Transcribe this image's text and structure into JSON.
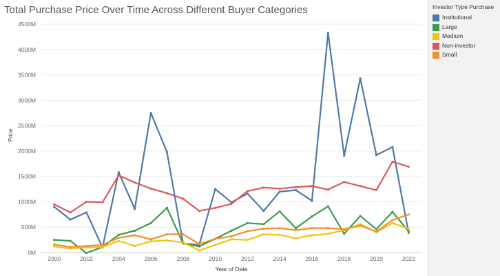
{
  "chart_data": {
    "type": "line",
    "title": "Total Purchase Price Over Time Across Different Buyer Categories",
    "xlabel": "Year of Date",
    "ylabel": "Price",
    "x": [
      2000,
      2001,
      2002,
      2003,
      2004,
      2005,
      2006,
      2007,
      2008,
      2009,
      2010,
      2011,
      2012,
      2013,
      2014,
      2015,
      2016,
      2017,
      2018,
      2019,
      2020,
      2021,
      2022
    ],
    "xticks": [
      "2000",
      "2002",
      "2004",
      "2006",
      "2008",
      "2010",
      "2012",
      "2014",
      "2016",
      "2018",
      "2020",
      "2022"
    ],
    "xtick_values": [
      2000,
      2002,
      2004,
      2006,
      2008,
      2010,
      2012,
      2014,
      2016,
      2018,
      2020,
      2022
    ],
    "yticks": [
      "0M",
      "500M",
      "1000M",
      "1500M",
      "2000M",
      "2500M",
      "3000M",
      "3500M",
      "4000M",
      "4500M"
    ],
    "ytick_values": [
      0,
      500,
      1000,
      1500,
      2000,
      2500,
      3000,
      3500,
      4000,
      4500
    ],
    "xlim": [
      1999.2,
      2022.8
    ],
    "ylim": [
      0,
      4500
    ],
    "y_unit": "M",
    "grid": "horizontal",
    "legend_position": "right",
    "legend_title": "Investor Type Purchase",
    "series": [
      {
        "name": "Institutional",
        "color": "#4e79a7",
        "values": [
          900,
          650,
          790,
          100,
          1580,
          860,
          2750,
          1980,
          180,
          150,
          1250,
          990,
          1160,
          820,
          1200,
          1230,
          1020,
          4330,
          1910,
          3430,
          1920,
          2080,
          390
        ]
      },
      {
        "name": "Large",
        "color": "#3e9c4a",
        "values": [
          250,
          230,
          -10,
          110,
          350,
          430,
          580,
          880,
          180,
          120,
          270,
          430,
          580,
          560,
          810,
          480,
          710,
          910,
          370,
          720,
          460,
          800,
          420
        ]
      },
      {
        "name": "Medium",
        "color": "#f1c40f",
        "values": [
          120,
          80,
          100,
          110,
          230,
          130,
          220,
          240,
          200,
          40,
          150,
          260,
          250,
          360,
          350,
          280,
          340,
          370,
          440,
          560,
          400,
          580,
          470
        ]
      },
      {
        "name": "Non-investor",
        "color": "#e15759",
        "values": [
          950,
          790,
          1000,
          990,
          1520,
          1380,
          1260,
          1170,
          1060,
          820,
          880,
          960,
          1210,
          1280,
          1260,
          1290,
          1310,
          1240,
          1390,
          1310,
          1230,
          1790,
          1690
        ]
      },
      {
        "name": "Small",
        "color": "#f28e2b",
        "values": [
          160,
          110,
          130,
          150,
          290,
          340,
          260,
          360,
          360,
          170,
          270,
          320,
          420,
          470,
          480,
          440,
          480,
          480,
          460,
          530,
          410,
          640,
          750
        ]
      }
    ]
  }
}
